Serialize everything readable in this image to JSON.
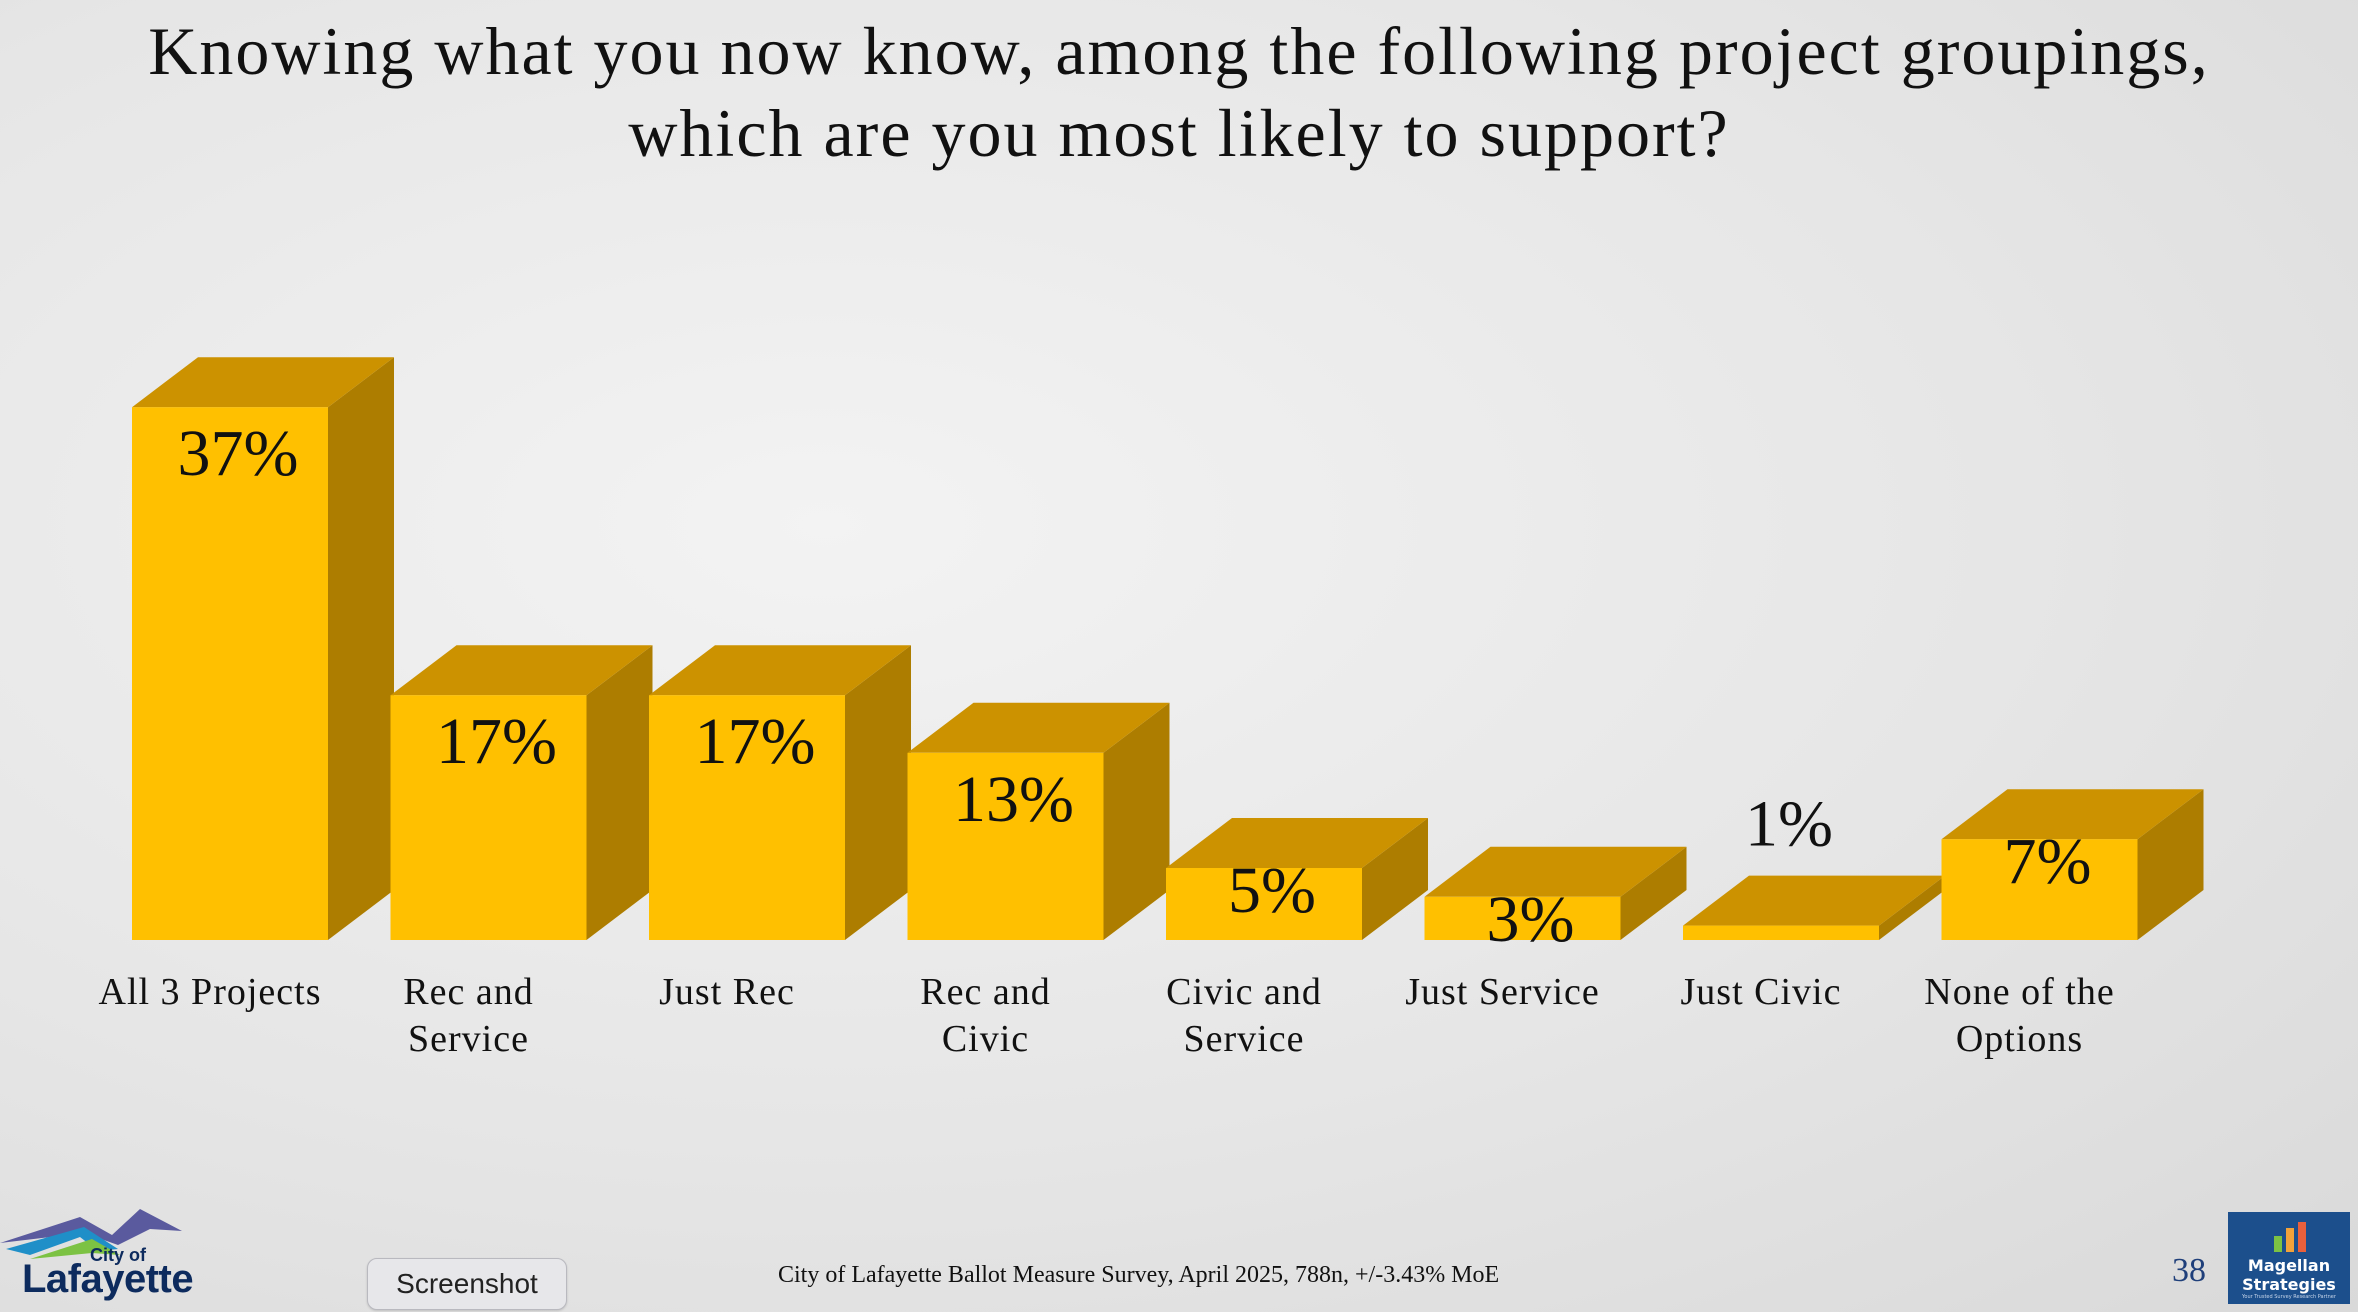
{
  "title_lines": [
    "Knowing what you now know, among the following project groupings,",
    "which are you most likely to support?"
  ],
  "chart_data": {
    "type": "bar",
    "title": "Knowing what you now know, among the following project groupings, which are you most likely to support?",
    "categories": [
      [
        "All 3 Projects"
      ],
      [
        "Rec and",
        "Service"
      ],
      [
        "Just Rec"
      ],
      [
        "Rec and",
        "Civic"
      ],
      [
        "Civic and",
        "Service"
      ],
      [
        "Just Service"
      ],
      [
        "Just Civic"
      ],
      [
        "None of the",
        "Options"
      ]
    ],
    "values": [
      37,
      17,
      17,
      13,
      5,
      3,
      1,
      7
    ],
    "value_labels": [
      "37%",
      "17%",
      "17%",
      "13%",
      "5%",
      "3%",
      "1%",
      "7%"
    ],
    "ylim": [
      0,
      40
    ],
    "grid": false,
    "legend": "none",
    "colors": {
      "front": "#FFC000",
      "top": "#CC9200",
      "side": "#AD7D00"
    }
  },
  "footer": {
    "source": "City of Lafayette Ballot Measure Survey, April 2025, 788n, +/-3.43% MoE",
    "page_number": "38",
    "screenshot_label": "Screenshot"
  },
  "logos": {
    "city_small": "City of",
    "city_big": "Lafayette",
    "magellan_line1": "Magellan",
    "magellan_line2": "Strategies",
    "magellan_tagline": "Your Trusted Survey Research Partner"
  }
}
